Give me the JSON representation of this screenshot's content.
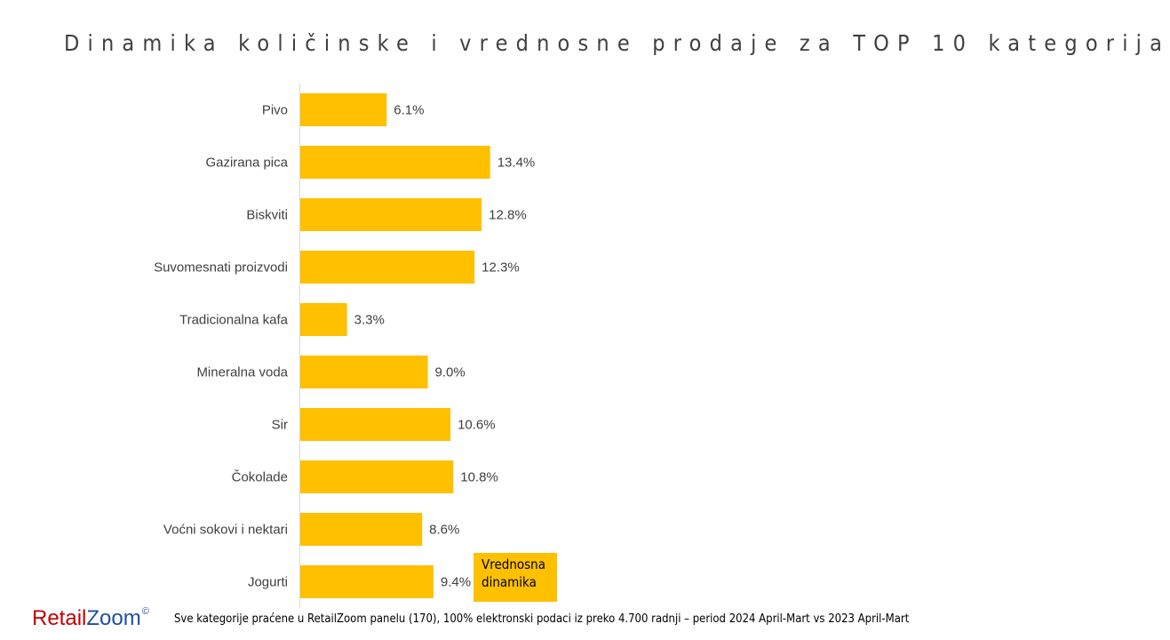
{
  "title": "Dinamika količinske i vrednosne prodaje za TOP 10 kategorija",
  "chart_data": {
    "type": "bar",
    "orientation": "horizontal",
    "categories": [
      "Pivo",
      "Gazirana pica",
      "Biskviti",
      "Suvomesnati proizvodi",
      "Tradicionalna kafa",
      "Mineralna voda",
      "Sir",
      "Čokolade",
      "Voćni sokovi i nektari",
      "Jogurti"
    ],
    "series": [
      {
        "values": [
          6.1,
          13.4,
          12.8,
          12.3,
          3.3,
          9.0,
          10.6,
          10.8,
          8.6,
          9.4
        ],
        "value_labels": [
          "6.1%",
          "13.4%",
          "12.8%",
          "12.3%",
          "3.3%",
          "9.0%",
          "10.6%",
          "10.8%",
          "8.6%",
          "9.4%"
        ],
        "color": "#FFC000"
      }
    ],
    "legend": {
      "position": "bottom-right",
      "lines": [
        "Vrednosna",
        "dinamika"
      ]
    }
  },
  "logo": {
    "retail": "Retail",
    "zoom": "Zoom",
    "mark": "©"
  },
  "footnote": "Sve kategorije praćene u RetailZoom panelu (170), 100% elektronski podaci iz preko 4.700 radnji – period 2024 April-Mart vs 2023 April-Mart",
  "colors": {
    "bar": "#FFC000",
    "text": "#404040",
    "axis": "#D9D9D9",
    "logo_red": "#C00000",
    "logo_blue": "#1F4E9E"
  }
}
